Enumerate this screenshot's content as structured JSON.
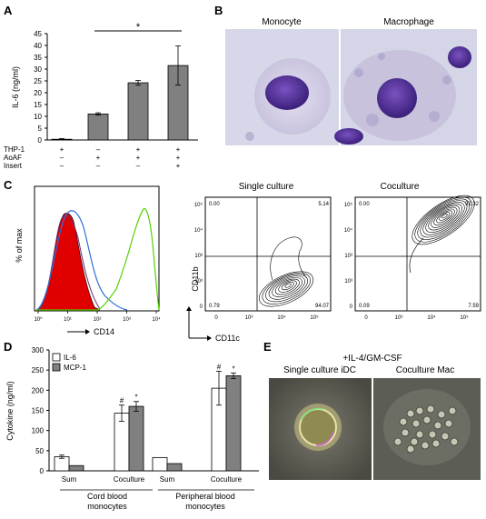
{
  "panels": {
    "A": "A",
    "B": "B",
    "C": "C",
    "D": "D",
    "E": "E"
  },
  "colors": {
    "bar_gray": "#808080",
    "red_fill": "#e00000",
    "blue": "#2f6fd6",
    "green": "#55d000",
    "cell_bg": "#c8c8dc",
    "nucleus": "#5b3fa3"
  },
  "panel_a": {
    "ylabel": "IL-6 (ng/ml)",
    "sig_mark": "*",
    "rows": [
      {
        "label": "THP-1",
        "marks": [
          "+",
          "–",
          "+",
          "+"
        ]
      },
      {
        "label": "AoAF",
        "marks": [
          "–",
          "+",
          "+",
          "+"
        ]
      },
      {
        "label": "Insert",
        "marks": [
          "–",
          "–",
          "–",
          "+"
        ]
      }
    ],
    "chart_data": {
      "type": "bar",
      "categories": [
        "THP-1 only",
        "AoAF only",
        "THP-1 + AoAF",
        "THP-1 + AoAF + Insert"
      ],
      "values": [
        0.3,
        11,
        24.2,
        31.5
      ],
      "errors": [
        0.3,
        0.5,
        1.0,
        8.3
      ],
      "ylim": [
        0,
        45
      ],
      "yticks": [
        0,
        5,
        10,
        15,
        20,
        25,
        30,
        35,
        40,
        45
      ]
    }
  },
  "panel_b": {
    "left_label": "Monocyte",
    "right_label": "Macrophage"
  },
  "panel_c": {
    "hist": {
      "ylabel": "% of max",
      "xlabel": "CD14",
      "xticks": [
        "10⁰",
        "10¹",
        "10²",
        "10³",
        "10⁴"
      ]
    },
    "contour": {
      "ylabel": "CD11b",
      "xlabel": "CD11c",
      "left": {
        "title": "Single culture",
        "q_ul": "0.00",
        "q_ur": "5.14",
        "q_ll": "0.79",
        "q_lr": "94.07"
      },
      "right": {
        "title": "Coculture",
        "q_ul": "0.00",
        "q_ur": "92.32",
        "q_ll": "0.09",
        "q_lr": "7.59"
      },
      "axis_ticks_x": [
        "0",
        "10³",
        "10⁴",
        "10⁵"
      ],
      "axis_ticks_y": [
        "0",
        "10³",
        "10³",
        "10⁴",
        "10⁵"
      ]
    }
  },
  "panel_d": {
    "ylabel": "Cytokine (ng/ml)",
    "legend": [
      "IL-6",
      "MCP-1"
    ],
    "group_labels": [
      [
        "Cord blood",
        "monocytes"
      ],
      [
        "Peripheral blood",
        "monocytes"
      ]
    ],
    "cond_labels": [
      "Sum",
      "Coculture",
      "Sum",
      "Coculture"
    ],
    "marks": {
      "hash": "#",
      "star": "*"
    },
    "chart_data": {
      "type": "bar",
      "categories": [
        "Cord Sum",
        "Cord Coculture",
        "Peripheral Sum",
        "Peripheral Coculture"
      ],
      "series": [
        {
          "name": "IL-6",
          "values": [
            35,
            143,
            33,
            205
          ],
          "errors": [
            4,
            20,
            0,
            42
          ]
        },
        {
          "name": "MCP-1",
          "values": [
            13,
            160,
            18,
            236
          ],
          "errors": [
            0,
            12,
            0,
            7
          ]
        }
      ],
      "ylim": [
        0,
        300
      ],
      "yticks": [
        0,
        50,
        100,
        150,
        200,
        250,
        300
      ]
    }
  },
  "panel_e": {
    "title": "+IL-4/GM-CSF",
    "left_label": "Single culture iDC",
    "right_label": "Coculture Mac"
  }
}
